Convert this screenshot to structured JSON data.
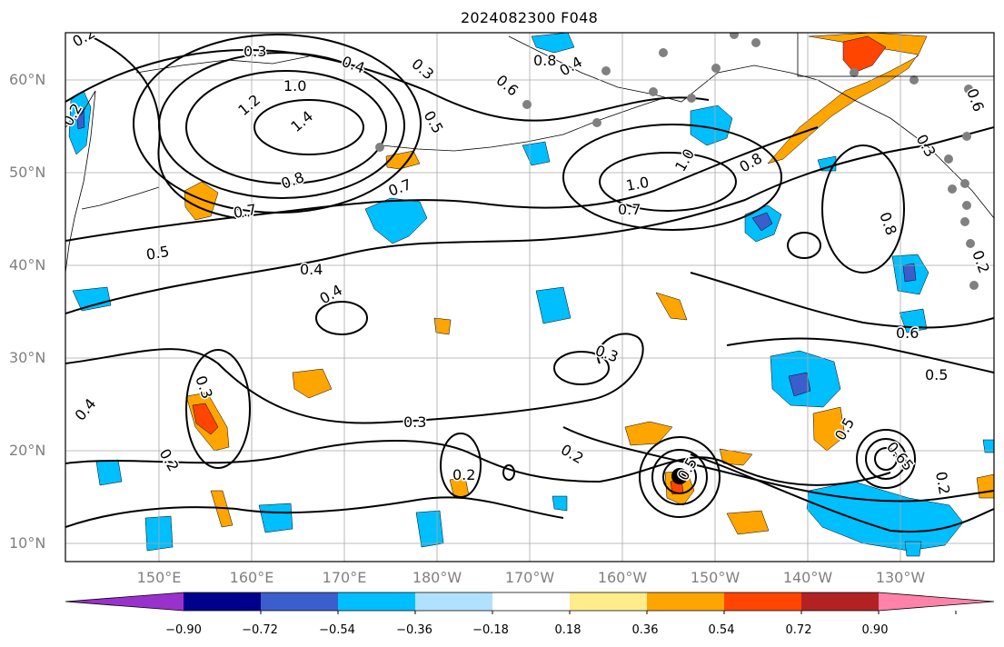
{
  "title": "2024082300 F048",
  "lat_labels": [
    "60°N",
    "50°N",
    "40°N",
    "30°N",
    "20°N",
    "10°N"
  ],
  "lon_labels": [
    "150°E",
    "160°E",
    "170°E",
    "180°W",
    "170°W",
    "160°W",
    "150°W",
    "140°W",
    "130°W"
  ],
  "contour_labels": [
    "0.2",
    "0.3",
    "0.4",
    "1.0",
    "1.2",
    "1.4",
    "0.5",
    "0.8",
    "0.7",
    "0.6",
    "0.3",
    "0.8",
    "0.4",
    "1.0",
    "1.0",
    "0.8",
    "0.7",
    "0.7",
    "0.8",
    "0.5",
    "0.4",
    "0.4",
    "0.3",
    "0.3",
    "0.2",
    "0.3",
    "0.4",
    "0.2",
    "0.2",
    "0.5",
    "0.6",
    "0.5",
    "0.5",
    "0.65",
    "0.2",
    "0.6",
    "0.3",
    "0.2",
    "0.2"
  ],
  "colorbar": {
    "ticks": [
      "−0.90",
      "−0.72",
      "−0.54",
      "−0.36",
      "−0.18",
      "0.18",
      "0.36",
      "0.54",
      "0.72",
      "0.90"
    ],
    "colors": [
      "#9932cc",
      "#00008b",
      "#3a5fcd",
      "#00bfff",
      "#b0e2ff",
      "#ffffff",
      "#ffec8b",
      "#ffa500",
      "#ff4500",
      "#b22222",
      "#ff82ab"
    ]
  }
}
